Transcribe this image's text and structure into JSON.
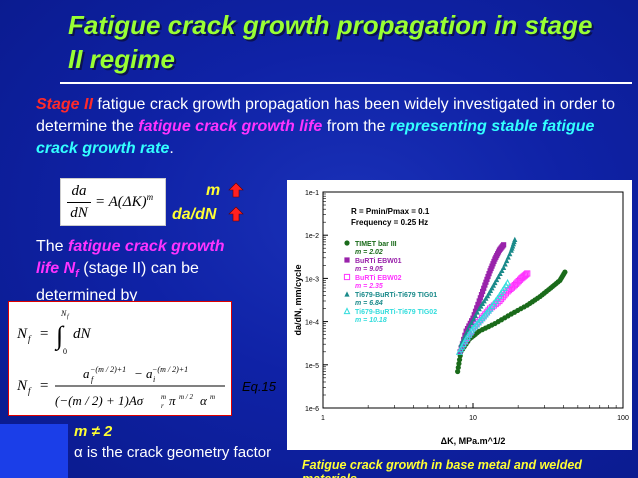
{
  "title": "Fatigue crack growth propagation in stage II regime",
  "intro": {
    "stage": "Stage II",
    "t1": " fatigue crack growth propagation has been widely investigated in order to determine the ",
    "life": "fatigue crack growth life",
    "t2": " from the ",
    "rate": "representing stable fatigue crack growth rate",
    "t3": "."
  },
  "labels": {
    "m": "m",
    "dadn": "da/dN"
  },
  "para2": {
    "t1": "The ",
    "life": "fatigue crack growth life N",
    "sub": "f",
    "t2": " (stage II) can be determined by"
  },
  "eq_label": "Eq.15",
  "bullets": {
    "m": "m ≠ 2",
    "alpha": "α is the crack geometry factor"
  },
  "caption": "Fatigue crack growth in base metal and welded materials",
  "colors": {
    "title": "#99ff33",
    "background": "#0f22a6"
  },
  "chart_data": {
    "type": "scatter",
    "x_scale": "log",
    "y_scale": "log",
    "xlim": [
      1,
      100
    ],
    "ylim": [
      1e-06,
      0.1
    ],
    "xlabel": "ΔK, MPa.m^1/2",
    "ylabel": "da/dN, mm/cycle",
    "x_ticks": [
      "1",
      "10",
      "100"
    ],
    "y_ticks": [
      "1e-6",
      "1e-5",
      "1e-4",
      "1e-3",
      "1e-2",
      "1e-1"
    ],
    "annotations": [
      "R = Pmin/Pmax = 0.1",
      "Frequency = 0.25 Hz"
    ],
    "series": [
      {
        "name": "TIMET bar III",
        "m_label": "m = 2.02",
        "color": "#1a6b1a",
        "marker": "circle",
        "x": [
          7.9,
          8.3,
          9.5,
          11,
          14,
          18,
          23,
          28,
          33,
          38,
          41
        ],
        "y": [
          7e-06,
          2e-05,
          4e-05,
          6e-05,
          9e-05,
          0.00015,
          0.00024,
          0.00038,
          0.0006,
          0.0009,
          0.0014
        ]
      },
      {
        "name": "BuRTi EBW01",
        "m_label": "m = 9.05",
        "color": "#9922aa",
        "marker": "square",
        "x": [
          8.2,
          9,
          10,
          11,
          12,
          13,
          14,
          15,
          16
        ],
        "y": [
          2e-05,
          6e-05,
          0.00012,
          0.0003,
          0.0007,
          0.0015,
          0.0028,
          0.0045,
          0.006
        ]
      },
      {
        "name": "BuRTi EBW02",
        "m_label": "m = 2.35",
        "color": "#ff33ff",
        "marker": "square-open",
        "x": [
          8.6,
          10,
          11.5,
          13,
          15,
          17,
          19,
          21,
          23
        ],
        "y": [
          3e-05,
          7e-05,
          0.00012,
          0.0002,
          0.0003,
          0.0005,
          0.0007,
          0.001,
          0.0013
        ]
      },
      {
        "name": "Ti679-BuRTi-Ti679 TIG01",
        "m_label": "m = 6.84",
        "color": "#1a8a8a",
        "marker": "triangle",
        "x": [
          8.3,
          9.5,
          11,
          12.5,
          14,
          16,
          18,
          19
        ],
        "y": [
          3e-05,
          8e-05,
          0.0002,
          0.0004,
          0.0008,
          0.0018,
          0.0045,
          0.008
        ]
      },
      {
        "name": "Ti679-BuRTi-Ti679 TIG02",
        "m_label": "m = 10.18",
        "color": "#33dddd",
        "marker": "triangle-open",
        "x": [
          8.1,
          9,
          10,
          11.5,
          13,
          15,
          17
        ],
        "y": [
          2e-05,
          4e-05,
          7e-05,
          0.00012,
          0.0002,
          0.0004,
          0.0008
        ]
      }
    ]
  }
}
